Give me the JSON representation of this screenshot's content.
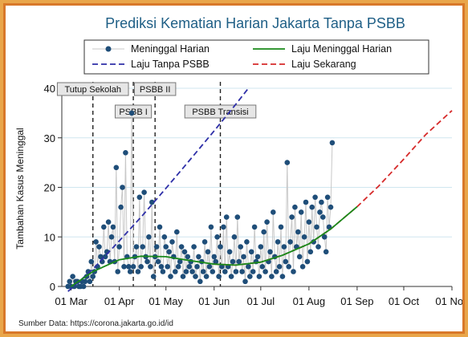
{
  "chart_data": {
    "type": "line",
    "title": "Prediksi Kematian Harian Jakarta Tanpa PSBB",
    "ylabel": "Tambahan Kasus Meninggal",
    "xlabel": "",
    "ylim": [
      0,
      40
    ],
    "yticks": [
      0,
      10,
      20,
      30,
      40
    ],
    "x_range": [
      "2020-02-24",
      "2020-11-01"
    ],
    "x_ticks": [
      {
        "date": "2020-03-01",
        "label": "01 Mar"
      },
      {
        "date": "2020-04-01",
        "label": "01 Apr"
      },
      {
        "date": "2020-05-01",
        "label": "01 May"
      },
      {
        "date": "2020-06-01",
        "label": "01 Jun"
      },
      {
        "date": "2020-07-01",
        "label": "01 Jul"
      },
      {
        "date": "2020-08-01",
        "label": "01 Aug"
      },
      {
        "date": "2020-09-01",
        "label": "01 Sep"
      },
      {
        "date": "2020-10-01",
        "label": "01 Oct"
      },
      {
        "date": "2020-11-01",
        "label": "01 Nov"
      }
    ],
    "grid": true,
    "legend_position": "top",
    "legend": [
      {
        "label": "Meninggal Harian",
        "style": "marker",
        "color": "#1f4e79"
      },
      {
        "label": "Laju Meninggal Harian",
        "style": "solid",
        "color": "#1a8a1a"
      },
      {
        "label": "Laju Tanpa PSBB",
        "style": "dashed",
        "color": "#2e2fa8"
      },
      {
        "label": "Laju Sekarang",
        "style": "dashed",
        "color": "#d62a2a"
      }
    ],
    "annotations": [
      {
        "date": "2020-03-15",
        "label": "Tutup Sekolah",
        "row": 0
      },
      {
        "date": "2020-04-10",
        "label": "PSBB I",
        "row": 1
      },
      {
        "date": "2020-04-24",
        "label": "PSBB II",
        "row": 0
      },
      {
        "date": "2020-06-05",
        "label": "PSBB Transisi",
        "row": 1
      }
    ],
    "series": [
      {
        "name": "Meninggal Harian",
        "start_date": "2020-02-28",
        "values": [
          0,
          1,
          0,
          2,
          0,
          1,
          1,
          0,
          0,
          1,
          0,
          1,
          2,
          3,
          1,
          5,
          2,
          3,
          9,
          4,
          8,
          6,
          5,
          12,
          6,
          7,
          13,
          5,
          10,
          12,
          5,
          24,
          3,
          8,
          16,
          20,
          4,
          27,
          6,
          4,
          3,
          35,
          4,
          6,
          8,
          3,
          18,
          4,
          8,
          19,
          6,
          5,
          10,
          4,
          17,
          2,
          6,
          8,
          5,
          12,
          4,
          3,
          10,
          8,
          4,
          7,
          2,
          9,
          6,
          3,
          11,
          4,
          5,
          8,
          2,
          7,
          3,
          6,
          4,
          5,
          3,
          8,
          2,
          4,
          6,
          1,
          5,
          3,
          9,
          2,
          7,
          4,
          12,
          3,
          6,
          5,
          10,
          2,
          8,
          4,
          12,
          3,
          14,
          4,
          7,
          2,
          5,
          10,
          3,
          14,
          5,
          8,
          3,
          6,
          1,
          9,
          4,
          2,
          7,
          3,
          12,
          5,
          6,
          2,
          8,
          4,
          11,
          3,
          13,
          5,
          7,
          2,
          15,
          6,
          3,
          9,
          4,
          12,
          2,
          8,
          5,
          25,
          4,
          9,
          14,
          3,
          16,
          8,
          11,
          6,
          15,
          4,
          10,
          17,
          5,
          13,
          7,
          16,
          9,
          18,
          12,
          8,
          15,
          17,
          14,
          10,
          7,
          18,
          12,
          16,
          29
        ]
      },
      {
        "name": "Laju Meninggal Harian",
        "points": [
          [
            "2020-03-01",
            0
          ],
          [
            "2020-03-15",
            3
          ],
          [
            "2020-04-01",
            5.4
          ],
          [
            "2020-04-15",
            6.1
          ],
          [
            "2020-05-01",
            6.0
          ],
          [
            "2020-05-15",
            5.3
          ],
          [
            "2020-06-01",
            4.5
          ],
          [
            "2020-06-15",
            4.3
          ],
          [
            "2020-07-01",
            4.9
          ],
          [
            "2020-07-15",
            6.3
          ],
          [
            "2020-08-01",
            8.6
          ],
          [
            "2020-08-15",
            11.6
          ],
          [
            "2020-09-01",
            16.1
          ]
        ]
      },
      {
        "name": "Laju Tanpa PSBB",
        "points": [
          [
            "2020-02-28",
            -1
          ],
          [
            "2020-03-15",
            3.5
          ],
          [
            "2020-04-01",
            9.2
          ],
          [
            "2020-04-15",
            14
          ],
          [
            "2020-05-01",
            19.8
          ],
          [
            "2020-05-15",
            25
          ],
          [
            "2020-06-01",
            31.4
          ],
          [
            "2020-06-15",
            36.8
          ],
          [
            "2020-06-23",
            40
          ]
        ]
      },
      {
        "name": "Laju Sekarang",
        "points": [
          [
            "2020-06-01",
            4.5
          ],
          [
            "2020-06-15",
            4.3
          ],
          [
            "2020-07-01",
            4.9
          ],
          [
            "2020-07-15",
            6.3
          ],
          [
            "2020-08-01",
            8.6
          ],
          [
            "2020-08-15",
            11.6
          ],
          [
            "2020-09-01",
            16.1
          ],
          [
            "2020-09-15",
            20.3
          ],
          [
            "2020-10-01",
            25.7
          ],
          [
            "2020-10-15",
            30.6
          ],
          [
            "2020-11-01",
            35.5
          ]
        ]
      }
    ]
  },
  "source_text": "Sumber Data: https://corona.jakarta.go.id/id"
}
